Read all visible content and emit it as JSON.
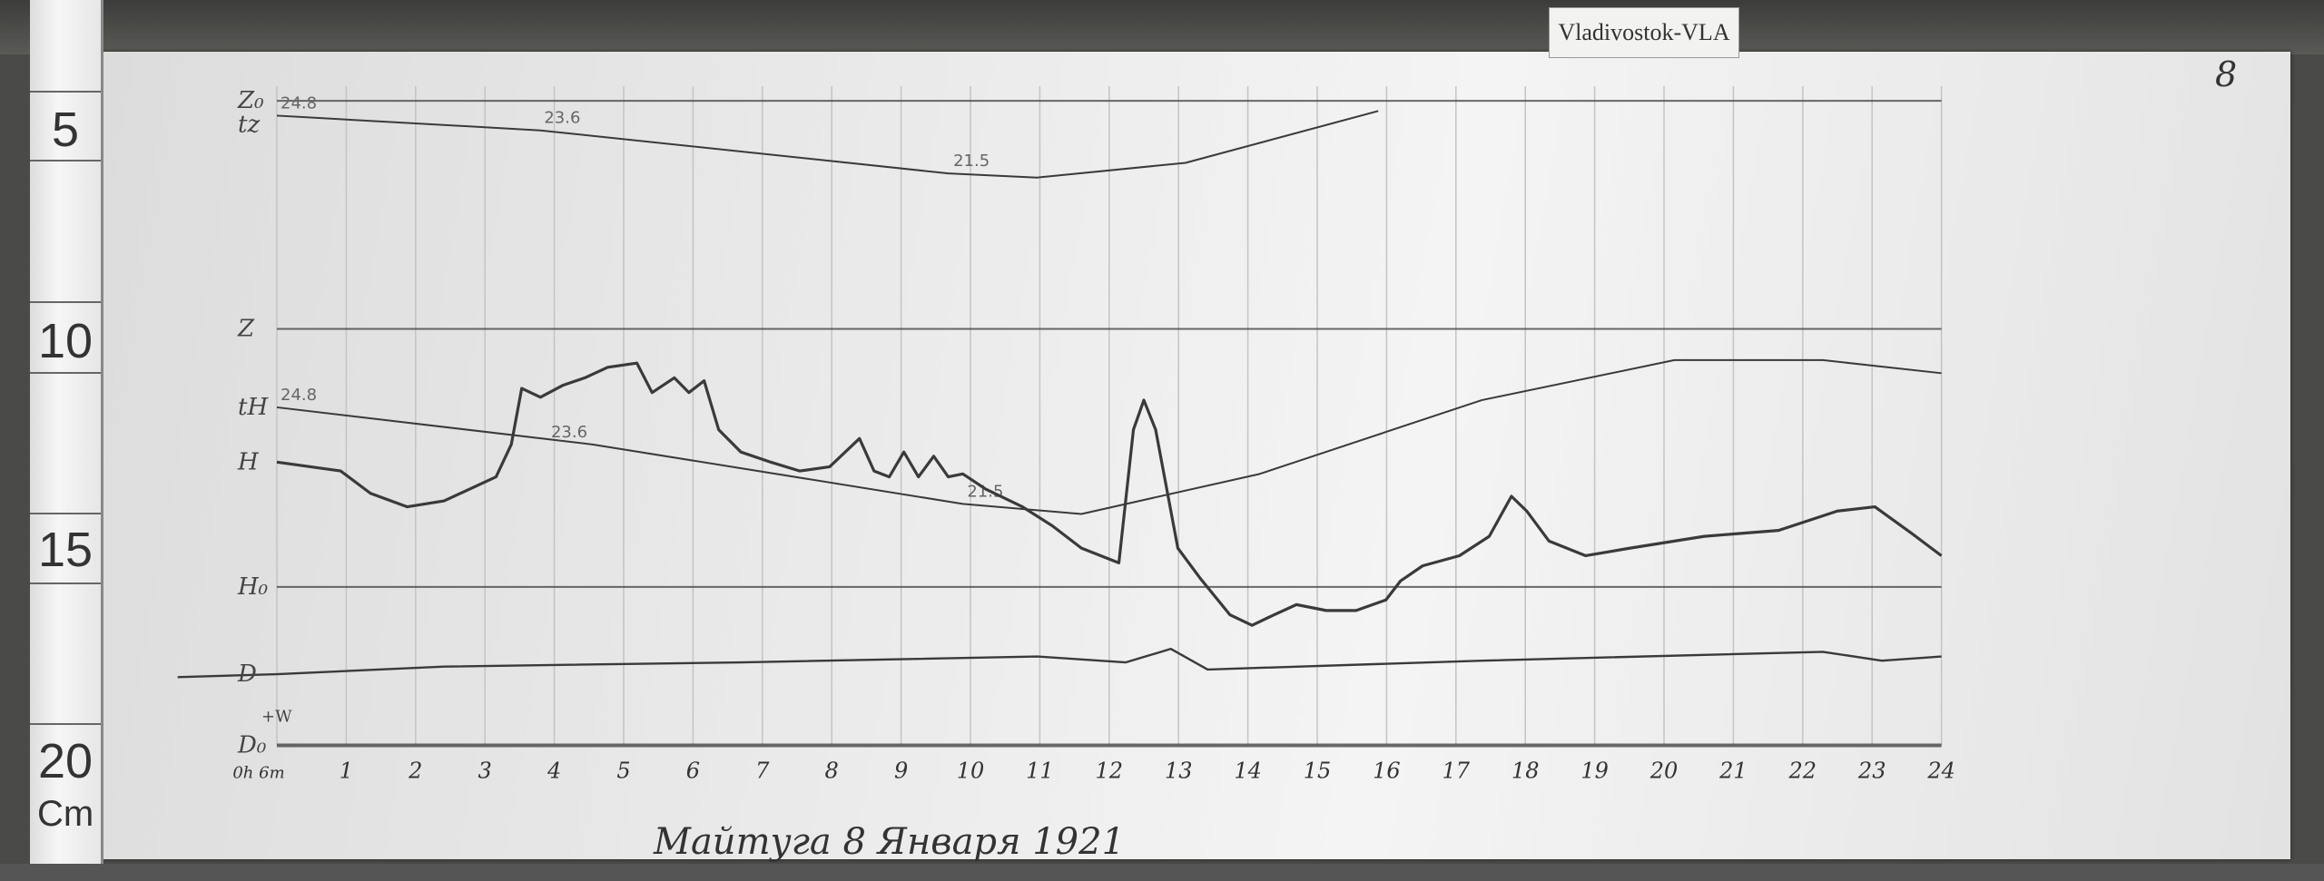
{
  "label_card": "Vladivostok-VLA",
  "page_number": "8",
  "caption": "Майтуга 8 Января 1921",
  "ruler": {
    "marks": [
      "5",
      "10",
      "15",
      "20"
    ],
    "unit": "Cm"
  },
  "chart_data": {
    "type": "line",
    "title": "",
    "xlabel": "",
    "ylabel": "",
    "x_unit": "hours",
    "y_unit": "cm (ruler)",
    "xlim": [
      0,
      24
    ],
    "ylim_cm": [
      4,
      21
    ],
    "x_tick_labels": [
      "0h 6m",
      "1",
      "2",
      "3",
      "4",
      "5",
      "6",
      "7",
      "8",
      "9",
      "10",
      "11",
      "12",
      "13",
      "14",
      "15",
      "16",
      "17",
      "18",
      "19",
      "20",
      "21",
      "22",
      "23",
      "24"
    ],
    "grid": "vertical hourly lines",
    "trace_labels": {
      "z0": "Z₀",
      "tz": "tz",
      "z": "Z",
      "th": "tH",
      "h": "H",
      "h0": "H₀",
      "d": "D",
      "d0": "D₀",
      "d0_dir": "+W"
    },
    "baselines": [
      {
        "name": "Z₀",
        "y": 4.3
      },
      {
        "name": "Z",
        "y": 9.71
      },
      {
        "name": "H₀",
        "y": 15.83
      },
      {
        "name": "D₀",
        "y": 19.59
      }
    ],
    "series": [
      {
        "name": "tz",
        "annotations": [
          {
            "x": 0,
            "text": "24.8"
          },
          {
            "x": 3.8,
            "text": "23.6"
          },
          {
            "x": 9.7,
            "text": "21.5"
          }
        ],
        "points": [
          [
            0,
            4.65
          ],
          [
            3.8,
            5.0
          ],
          [
            9.68,
            6.02
          ],
          [
            10.96,
            6.12
          ],
          [
            13.1,
            5.77
          ],
          [
            15.88,
            4.54
          ]
        ]
      },
      {
        "name": "tH",
        "annotations": [
          {
            "x": 0,
            "text": "24.8"
          },
          {
            "x": 3.9,
            "text": "23.6"
          },
          {
            "x": 9.9,
            "text": "21.5"
          }
        ],
        "points": [
          [
            0,
            11.57
          ],
          [
            4.55,
            12.45
          ],
          [
            9.89,
            13.86
          ],
          [
            11.6,
            14.1
          ],
          [
            14.17,
            13.15
          ],
          [
            17.37,
            11.4
          ],
          [
            20.15,
            10.45
          ],
          [
            22.29,
            10.45
          ],
          [
            24,
            10.76
          ]
        ]
      },
      {
        "name": "H",
        "points": [
          [
            0,
            12.87
          ],
          [
            0.92,
            13.08
          ],
          [
            1.35,
            13.61
          ],
          [
            1.88,
            13.93
          ],
          [
            2.41,
            13.79
          ],
          [
            3.16,
            13.22
          ],
          [
            3.38,
            12.45
          ],
          [
            3.53,
            11.12
          ],
          [
            3.8,
            11.33
          ],
          [
            4.12,
            11.05
          ],
          [
            4.44,
            10.87
          ],
          [
            4.77,
            10.62
          ],
          [
            5.19,
            10.52
          ],
          [
            5.41,
            11.22
          ],
          [
            5.73,
            10.87
          ],
          [
            5.94,
            11.22
          ],
          [
            6.16,
            10.94
          ],
          [
            6.37,
            12.1
          ],
          [
            6.69,
            12.63
          ],
          [
            7.12,
            12.87
          ],
          [
            7.54,
            13.08
          ],
          [
            7.97,
            12.98
          ],
          [
            8.4,
            12.31
          ],
          [
            8.61,
            13.08
          ],
          [
            8.83,
            13.22
          ],
          [
            9.04,
            12.63
          ],
          [
            9.25,
            13.22
          ],
          [
            9.47,
            12.73
          ],
          [
            9.68,
            13.22
          ],
          [
            9.89,
            13.15
          ],
          [
            10.22,
            13.51
          ],
          [
            10.75,
            13.93
          ],
          [
            11.18,
            14.38
          ],
          [
            11.6,
            14.91
          ],
          [
            12.14,
            15.26
          ],
          [
            12.35,
            12.1
          ],
          [
            12.5,
            11.4
          ],
          [
            12.67,
            12.1
          ],
          [
            12.99,
            14.91
          ],
          [
            13.31,
            15.62
          ],
          [
            13.74,
            16.49
          ],
          [
            14.06,
            16.74
          ],
          [
            14.38,
            16.49
          ],
          [
            14.7,
            16.25
          ],
          [
            15.13,
            16.39
          ],
          [
            15.56,
            16.39
          ],
          [
            15.99,
            16.14
          ],
          [
            16.2,
            15.69
          ],
          [
            16.52,
            15.33
          ],
          [
            17.05,
            15.09
          ],
          [
            17.48,
            14.63
          ],
          [
            17.8,
            13.68
          ],
          [
            18.02,
            14.03
          ],
          [
            18.34,
            14.74
          ],
          [
            18.87,
            15.09
          ],
          [
            19.51,
            14.91
          ],
          [
            20.58,
            14.63
          ],
          [
            21.65,
            14.49
          ],
          [
            22.5,
            14.03
          ],
          [
            23.04,
            13.93
          ],
          [
            23.57,
            14.56
          ],
          [
            24,
            15.09
          ]
        ]
      },
      {
        "name": "D",
        "points": [
          [
            -1.43,
            17.97
          ],
          [
            0,
            17.9
          ],
          [
            2.41,
            17.72
          ],
          [
            6.69,
            17.62
          ],
          [
            10.96,
            17.48
          ],
          [
            12.24,
            17.62
          ],
          [
            12.89,
            17.3
          ],
          [
            13.42,
            17.79
          ],
          [
            17.37,
            17.58
          ],
          [
            22.29,
            17.37
          ],
          [
            23.14,
            17.58
          ],
          [
            24,
            17.48
          ]
        ]
      }
    ]
  },
  "colors": {
    "paper": "#ebebeb",
    "trace": "#3a3a3a",
    "grid": "#c4c4c4",
    "background": "#4a4a48"
  }
}
